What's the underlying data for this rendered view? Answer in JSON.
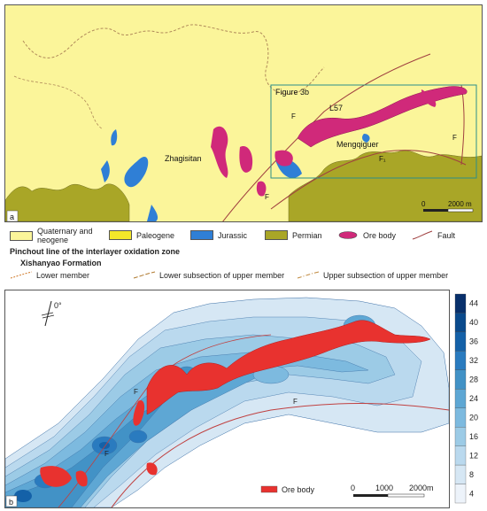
{
  "panel_a": {
    "letter": "a",
    "figure_box_label": "Figure 3b",
    "place_names": [
      "Zhagisitan",
      "Mengqiguer",
      "L57"
    ],
    "fault_labels": [
      "F",
      "F",
      "F",
      "F₁"
    ],
    "scale": {
      "zero": "0",
      "end": "2000 m"
    }
  },
  "legend_a": {
    "items": [
      {
        "label": "Quaternary and neogene",
        "color": "#fbf59a"
      },
      {
        "label": "Paleogene",
        "color": "#f4e72a"
      },
      {
        "label": "Jurassic",
        "color": "#2f7fd6"
      },
      {
        "label": "Permian",
        "color": "#a9a627"
      },
      {
        "label": "Ore body",
        "color": "#d0297a"
      },
      {
        "label": "Fault",
        "color": "#a04040"
      }
    ],
    "pinchout_title": "Pinchout line of the interlayer oxidation zone",
    "formation_title": "Xishanyao Formation",
    "lines": [
      {
        "label": "Lower member",
        "color": "#d07a2a"
      },
      {
        "label": "Lower subsection of upper member",
        "color": "#b07a30"
      },
      {
        "label": "Upper subsection of upper member",
        "color": "#c08a40"
      }
    ]
  },
  "panel_b": {
    "letter": "b",
    "north_label": "0°",
    "fault_labels": [
      "F",
      "F",
      "F"
    ],
    "ore_legend_label": "Ore body",
    "scale": {
      "zero": "0",
      "mid": "1000",
      "end": "2000m"
    }
  },
  "colorbar": {
    "ticks": [
      "44",
      "40",
      "36",
      "32",
      "28",
      "24",
      "20",
      "16",
      "12",
      "8",
      "4"
    ],
    "colors": [
      "#08306b",
      "#0a4a8c",
      "#1461a8",
      "#2a7bbf",
      "#4292c6",
      "#5ea7d4",
      "#7dbadf",
      "#9ccbe6",
      "#bad9ee",
      "#d6e7f4",
      "#edf3fa"
    ]
  }
}
